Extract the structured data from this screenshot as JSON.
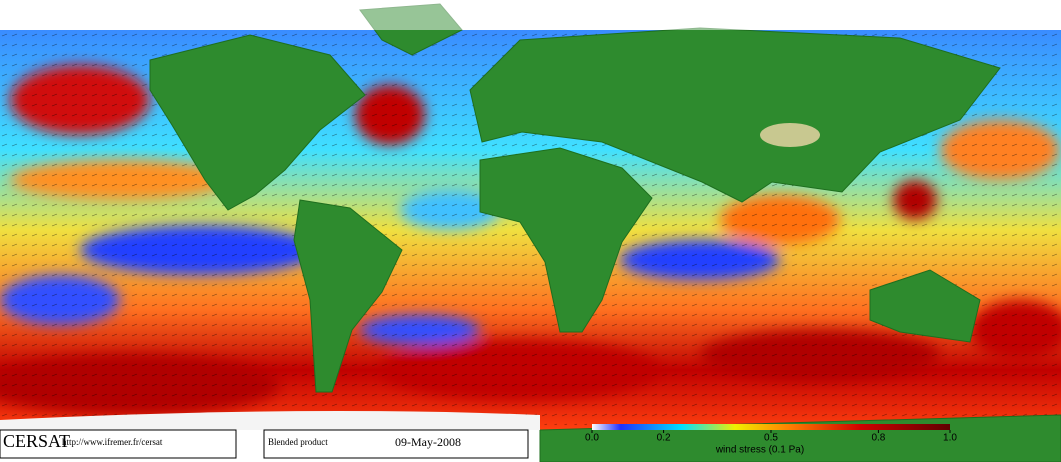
{
  "logo": "CERSAT",
  "url": "http://www.ifremer.fr/cersat",
  "product": "Blended product",
  "date": "09-May-2008",
  "colorbar": {
    "label": "wind stress (0.1 Pa)",
    "lim": [
      0,
      1.0
    ],
    "ticks": [
      {
        "value": 0,
        "label": "0.0"
      },
      0.2,
      0.5,
      0.8,
      {
        "value": 1.0,
        "label": "1.0"
      }
    ]
  }
}
